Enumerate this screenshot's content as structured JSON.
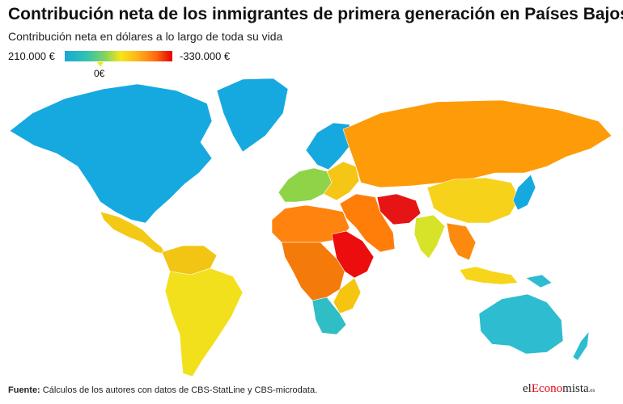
{
  "header": {
    "title": "Contribución neta de los inmigrantes de primera generación en Países Bajos",
    "subtitle": "Contribución neta en dólares a lo largo de toda su vida"
  },
  "legend": {
    "max_label": "210.000 €",
    "min_label": "-330.000 €",
    "zero_label": "0€",
    "scale_colors": [
      "#1aa7d6",
      "#2fc2b2",
      "#86d35b",
      "#f4e61a",
      "#ffb21a",
      "#ff6a10",
      "#e60000"
    ]
  },
  "footer": {
    "source_label": "Fuente:",
    "source_text": "Cálculos de los autores con datos de CBS-StatLine y CBS-microdata.",
    "logo_pre": "el",
    "logo_accent": "Econo",
    "logo_post": "mista",
    "logo_tld": ".es"
  },
  "map_colors": {
    "north_america": "#16a9e0",
    "greenland": "#16a9e0",
    "central_america": "#f4c916",
    "south_america": "#f3e01d",
    "south_america_north": "#f2c515",
    "scandinavia": "#16a9e0",
    "western_europe": "#8fd349",
    "eastern_europe": "#f6c617",
    "russia": "#fd9b09",
    "middle_east": "#ff7e09",
    "afghanistan_iran": "#e61414",
    "north_africa": "#ff830f",
    "horn_of_africa": "#ec0e0e",
    "central_africa": "#f47a0a",
    "southern_africa": "#2fbdc6",
    "east_africa": "#f5c510",
    "india": "#d7e328",
    "china": "#f6d21a",
    "southeast_asia": "#fb8a0f",
    "indonesia": "#f7d51b",
    "japan": "#16a9e0",
    "australia": "#2ebcd0",
    "new_zealand": "#2ebcd0",
    "papua": "#2ebcd0"
  }
}
